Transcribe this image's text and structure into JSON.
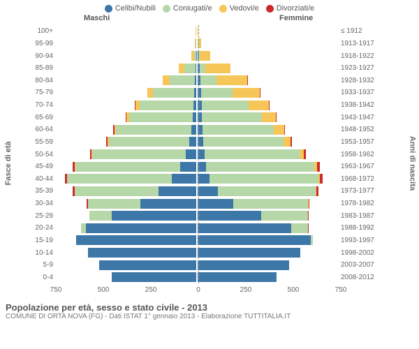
{
  "legend": [
    {
      "label": "Celibi/Nubili",
      "color": "#3d77a8"
    },
    {
      "label": "Coniugati/e",
      "color": "#b6d7a8"
    },
    {
      "label": "Vedovi/e",
      "color": "#f6c658"
    },
    {
      "label": "Divorziati/e",
      "color": "#cc2b2b"
    }
  ],
  "header_male": "Maschi",
  "header_female": "Femmine",
  "axis_left_title": "Fasce di età",
  "axis_right_title": "Anni di nascita",
  "max_value": 750,
  "x_ticks": [
    750,
    500,
    250,
    0,
    250,
    500,
    750
  ],
  "colors": {
    "single": "#3d77a8",
    "married": "#b6d7a8",
    "widowed": "#f6c658",
    "divorced": "#cc2b2b",
    "grid": "#999999",
    "text": "#666666",
    "bg": "#ffffff"
  },
  "footer_title": "Popolazione per età, sesso e stato civile - 2013",
  "footer_sub": "COMUNE DI ORTA NOVA (FG) - Dati ISTAT 1° gennaio 2013 - Elaborazione TUTTITALIA.IT",
  "bar_height_ratio": 0.8,
  "rows": [
    {
      "age": "100+",
      "year": "≤ 1912",
      "m": {
        "single": 0,
        "married": 0,
        "widowed": 2,
        "divorced": 0
      },
      "f": {
        "single": 0,
        "married": 0,
        "widowed": 5,
        "divorced": 0
      }
    },
    {
      "age": "95-99",
      "year": "1913-1917",
      "m": {
        "single": 0,
        "married": 2,
        "widowed": 6,
        "divorced": 0
      },
      "f": {
        "single": 1,
        "married": 1,
        "widowed": 18,
        "divorced": 0
      }
    },
    {
      "age": "90-94",
      "year": "1918-1922",
      "m": {
        "single": 1,
        "married": 10,
        "widowed": 14,
        "divorced": 0
      },
      "f": {
        "single": 5,
        "married": 6,
        "widowed": 55,
        "divorced": 0
      }
    },
    {
      "age": "85-89",
      "year": "1923-1927",
      "m": {
        "single": 4,
        "married": 60,
        "widowed": 30,
        "divorced": 0
      },
      "f": {
        "single": 10,
        "married": 30,
        "widowed": 135,
        "divorced": 0
      }
    },
    {
      "age": "80-84",
      "year": "1928-1932",
      "m": {
        "single": 8,
        "married": 135,
        "widowed": 35,
        "divorced": 0
      },
      "f": {
        "single": 14,
        "married": 85,
        "widowed": 165,
        "divorced": 1
      }
    },
    {
      "age": "75-79",
      "year": "1933-1937",
      "m": {
        "single": 10,
        "married": 220,
        "widowed": 30,
        "divorced": 2
      },
      "f": {
        "single": 18,
        "married": 170,
        "widowed": 145,
        "divorced": 2
      }
    },
    {
      "age": "70-74",
      "year": "1938-1942",
      "m": {
        "single": 14,
        "married": 290,
        "widowed": 22,
        "divorced": 3
      },
      "f": {
        "single": 22,
        "married": 250,
        "widowed": 110,
        "divorced": 3
      }
    },
    {
      "age": "65-69",
      "year": "1943-1947",
      "m": {
        "single": 18,
        "married": 340,
        "widowed": 14,
        "divorced": 4
      },
      "f": {
        "single": 24,
        "married": 320,
        "widowed": 75,
        "divorced": 4
      }
    },
    {
      "age": "60-64",
      "year": "1948-1952",
      "m": {
        "single": 28,
        "married": 400,
        "widowed": 10,
        "divorced": 6
      },
      "f": {
        "single": 26,
        "married": 380,
        "widowed": 55,
        "divorced": 6
      }
    },
    {
      "age": "55-59",
      "year": "1953-1957",
      "m": {
        "single": 38,
        "married": 430,
        "widowed": 6,
        "divorced": 7
      },
      "f": {
        "single": 30,
        "married": 430,
        "widowed": 35,
        "divorced": 8
      }
    },
    {
      "age": "50-54",
      "year": "1958-1962",
      "m": {
        "single": 55,
        "married": 500,
        "widowed": 4,
        "divorced": 10
      },
      "f": {
        "single": 36,
        "married": 510,
        "widowed": 22,
        "divorced": 12
      }
    },
    {
      "age": "45-49",
      "year": "1963-1967",
      "m": {
        "single": 85,
        "married": 560,
        "widowed": 3,
        "divorced": 12
      },
      "f": {
        "single": 45,
        "married": 580,
        "widowed": 14,
        "divorced": 15
      }
    },
    {
      "age": "40-44",
      "year": "1968-1972",
      "m": {
        "single": 130,
        "married": 560,
        "widowed": 2,
        "divorced": 11
      },
      "f": {
        "single": 65,
        "married": 580,
        "widowed": 8,
        "divorced": 14
      }
    },
    {
      "age": "35-39",
      "year": "1973-1977",
      "m": {
        "single": 200,
        "married": 450,
        "widowed": 1,
        "divorced": 8
      },
      "f": {
        "single": 110,
        "married": 520,
        "widowed": 4,
        "divorced": 10
      }
    },
    {
      "age": "30-34",
      "year": "1978-1982",
      "m": {
        "single": 300,
        "married": 280,
        "widowed": 0,
        "divorced": 5
      },
      "f": {
        "single": 190,
        "married": 400,
        "widowed": 2,
        "divorced": 6
      }
    },
    {
      "age": "25-29",
      "year": "1983-1987",
      "m": {
        "single": 450,
        "married": 120,
        "widowed": 0,
        "divorced": 2
      },
      "f": {
        "single": 340,
        "married": 250,
        "widowed": 1,
        "divorced": 3
      }
    },
    {
      "age": "20-24",
      "year": "1988-1992",
      "m": {
        "single": 590,
        "married": 25,
        "widowed": 0,
        "divorced": 0
      },
      "f": {
        "single": 500,
        "married": 90,
        "widowed": 0,
        "divorced": 1
      }
    },
    {
      "age": "15-19",
      "year": "1993-1997",
      "m": {
        "single": 640,
        "married": 2,
        "widowed": 0,
        "divorced": 0
      },
      "f": {
        "single": 605,
        "married": 12,
        "widowed": 0,
        "divorced": 0
      }
    },
    {
      "age": "10-14",
      "year": "1998-2002",
      "m": {
        "single": 580,
        "married": 0,
        "widowed": 0,
        "divorced": 0
      },
      "f": {
        "single": 550,
        "married": 0,
        "widowed": 0,
        "divorced": 0
      }
    },
    {
      "age": "5-9",
      "year": "2003-2007",
      "m": {
        "single": 520,
        "married": 0,
        "widowed": 0,
        "divorced": 0
      },
      "f": {
        "single": 490,
        "married": 0,
        "widowed": 0,
        "divorced": 0
      }
    },
    {
      "age": "0-4",
      "year": "2008-2012",
      "m": {
        "single": 450,
        "married": 0,
        "widowed": 0,
        "divorced": 0
      },
      "f": {
        "single": 420,
        "married": 0,
        "widowed": 0,
        "divorced": 0
      }
    }
  ]
}
